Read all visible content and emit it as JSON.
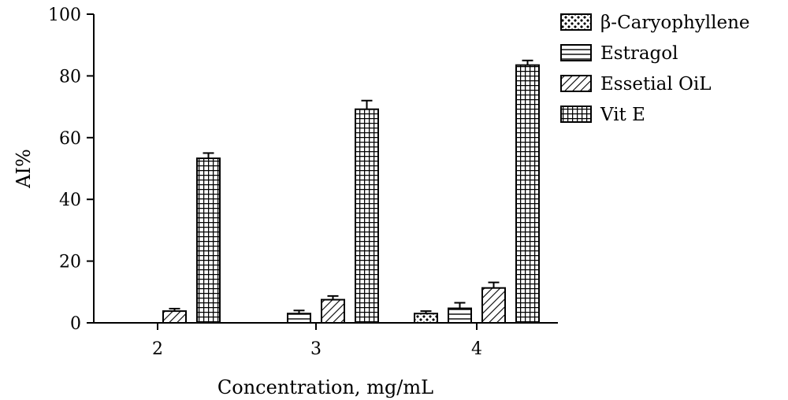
{
  "chart_data": {
    "type": "bar",
    "title": "",
    "xlabel": "Concentration, mg/mL",
    "ylabel": "AI%",
    "ylim": [
      0,
      100
    ],
    "yticks": [
      "0",
      "20",
      "40",
      "60",
      "80",
      "100"
    ],
    "categories": [
      "2",
      "3",
      "4"
    ],
    "legend_position": "top-right",
    "grid": false,
    "series": [
      {
        "name": "β-Caryophyllene",
        "pattern": "dots",
        "values": [
          null,
          null,
          3.0
        ],
        "errors": [
          null,
          null,
          0.8
        ]
      },
      {
        "name": "Estragol",
        "pattern": "horizontal",
        "values": [
          null,
          3.0,
          4.7
        ],
        "errors": [
          null,
          1.0,
          1.8
        ]
      },
      {
        "name": "Essetial OiL",
        "pattern": "diagonal",
        "values": [
          3.8,
          7.5,
          11.3
        ],
        "errors": [
          0.8,
          1.2,
          1.8
        ]
      },
      {
        "name": "Vit E",
        "pattern": "grid",
        "values": [
          53.3,
          69.2,
          83.5
        ],
        "errors": [
          1.7,
          2.8,
          1.5
        ]
      }
    ]
  }
}
